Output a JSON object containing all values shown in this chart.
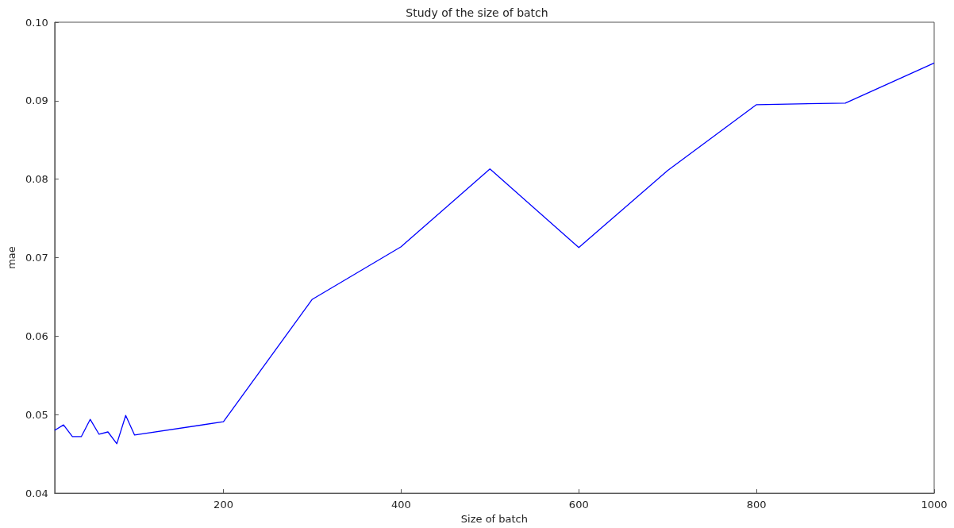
{
  "chart_data": {
    "type": "line",
    "title": "Study of the size of batch",
    "xlabel": "Size of batch",
    "ylabel": "mae",
    "x": [
      10,
      20,
      30,
      40,
      50,
      60,
      70,
      80,
      90,
      100,
      200,
      300,
      400,
      500,
      600,
      700,
      800,
      900,
      1000
    ],
    "series": [
      {
        "color": "#0000ff",
        "values": [
          0.048,
          0.0487,
          0.0472,
          0.0472,
          0.0494,
          0.0475,
          0.0478,
          0.0463,
          0.0499,
          0.0474,
          0.0491,
          0.0647,
          0.0714,
          0.0813,
          0.0713,
          0.0811,
          0.0895,
          0.0897,
          0.0948
        ]
      }
    ],
    "xlim": [
      10,
      1000
    ],
    "xticks": [
      200,
      400,
      600,
      800,
      1000
    ],
    "ylim": [
      0.04,
      0.1
    ],
    "yticks": [
      {
        "value": 0.04,
        "label": "0.04"
      },
      {
        "value": 0.05,
        "label": "0.05"
      },
      {
        "value": 0.06,
        "label": "0.06"
      },
      {
        "value": 0.07,
        "label": "0.07"
      },
      {
        "value": 0.08,
        "label": "0.08"
      },
      {
        "value": 0.09,
        "label": "0.09"
      },
      {
        "value": 0.1,
        "label": "0.10"
      }
    ],
    "grid": false,
    "marker": "none",
    "line_style": "solid"
  }
}
